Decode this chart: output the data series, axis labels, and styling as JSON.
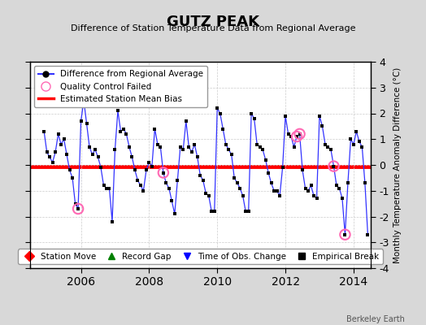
{
  "title": "GUTZ PEAK",
  "subtitle": "Difference of Station Temperature Data from Regional Average",
  "ylabel_right": "Monthly Temperature Anomaly Difference (°C)",
  "bias_value": -0.05,
  "ylim": [
    -4,
    4
  ],
  "xlim": [
    2004.5,
    2014.5
  ],
  "xticks": [
    2006,
    2008,
    2010,
    2012,
    2014
  ],
  "yticks": [
    -4,
    -3,
    -2,
    -1,
    0,
    1,
    2,
    3,
    4
  ],
  "background_color": "#d8d8d8",
  "plot_bg_color": "#ffffff",
  "line_color": "#3333ff",
  "bias_color": "#ff0000",
  "marker_color": "#000000",
  "qc_color": "#ff69b4",
  "watermark": "Berkeley Earth",
  "monthly_data": [
    [
      2004.917,
      1.3
    ],
    [
      2005.0,
      0.5
    ],
    [
      2005.083,
      0.3
    ],
    [
      2005.167,
      0.1
    ],
    [
      2005.25,
      0.5
    ],
    [
      2005.333,
      1.2
    ],
    [
      2005.417,
      0.8
    ],
    [
      2005.5,
      1.0
    ],
    [
      2005.583,
      0.4
    ],
    [
      2005.667,
      -0.2
    ],
    [
      2005.75,
      -0.5
    ],
    [
      2005.833,
      -1.5
    ],
    [
      2005.917,
      -1.7
    ],
    [
      2006.0,
      1.7
    ],
    [
      2006.083,
      2.5
    ],
    [
      2006.167,
      1.6
    ],
    [
      2006.25,
      0.7
    ],
    [
      2006.333,
      0.4
    ],
    [
      2006.417,
      0.6
    ],
    [
      2006.5,
      0.3
    ],
    [
      2006.583,
      -0.1
    ],
    [
      2006.667,
      -0.8
    ],
    [
      2006.75,
      -0.9
    ],
    [
      2006.833,
      -0.9
    ],
    [
      2006.917,
      -2.2
    ],
    [
      2007.0,
      0.6
    ],
    [
      2007.083,
      2.1
    ],
    [
      2007.167,
      1.3
    ],
    [
      2007.25,
      1.4
    ],
    [
      2007.333,
      1.2
    ],
    [
      2007.417,
      0.7
    ],
    [
      2007.5,
      0.3
    ],
    [
      2007.583,
      -0.2
    ],
    [
      2007.667,
      -0.6
    ],
    [
      2007.75,
      -0.8
    ],
    [
      2007.833,
      -1.0
    ],
    [
      2007.917,
      -0.2
    ],
    [
      2008.0,
      0.1
    ],
    [
      2008.083,
      -0.05
    ],
    [
      2008.167,
      1.4
    ],
    [
      2008.25,
      0.8
    ],
    [
      2008.333,
      0.7
    ],
    [
      2008.417,
      -0.3
    ],
    [
      2008.5,
      -0.7
    ],
    [
      2008.583,
      -0.9
    ],
    [
      2008.667,
      -1.4
    ],
    [
      2008.75,
      -1.9
    ],
    [
      2008.833,
      -0.6
    ],
    [
      2008.917,
      0.7
    ],
    [
      2009.0,
      0.6
    ],
    [
      2009.083,
      1.7
    ],
    [
      2009.167,
      0.7
    ],
    [
      2009.25,
      0.5
    ],
    [
      2009.333,
      0.8
    ],
    [
      2009.417,
      0.3
    ],
    [
      2009.5,
      -0.4
    ],
    [
      2009.583,
      -0.6
    ],
    [
      2009.667,
      -1.1
    ],
    [
      2009.75,
      -1.2
    ],
    [
      2009.833,
      -1.8
    ],
    [
      2009.917,
      -1.8
    ],
    [
      2010.0,
      2.2
    ],
    [
      2010.083,
      2.0
    ],
    [
      2010.167,
      1.4
    ],
    [
      2010.25,
      0.8
    ],
    [
      2010.333,
      0.6
    ],
    [
      2010.417,
      0.4
    ],
    [
      2010.5,
      -0.5
    ],
    [
      2010.583,
      -0.7
    ],
    [
      2010.667,
      -0.9
    ],
    [
      2010.75,
      -1.2
    ],
    [
      2010.833,
      -1.8
    ],
    [
      2010.917,
      -1.8
    ],
    [
      2011.0,
      2.0
    ],
    [
      2011.083,
      1.8
    ],
    [
      2011.167,
      0.8
    ],
    [
      2011.25,
      0.7
    ],
    [
      2011.333,
      0.6
    ],
    [
      2011.417,
      0.2
    ],
    [
      2011.5,
      -0.3
    ],
    [
      2011.583,
      -0.7
    ],
    [
      2011.667,
      -1.0
    ],
    [
      2011.75,
      -1.0
    ],
    [
      2011.833,
      -1.2
    ],
    [
      2011.917,
      -0.1
    ],
    [
      2012.0,
      1.9
    ],
    [
      2012.083,
      1.2
    ],
    [
      2012.167,
      1.1
    ],
    [
      2012.25,
      0.7
    ],
    [
      2012.333,
      1.1
    ],
    [
      2012.417,
      1.2
    ],
    [
      2012.5,
      -0.2
    ],
    [
      2012.583,
      -0.9
    ],
    [
      2012.667,
      -1.0
    ],
    [
      2012.75,
      -0.8
    ],
    [
      2012.833,
      -1.2
    ],
    [
      2012.917,
      -1.3
    ],
    [
      2013.0,
      1.9
    ],
    [
      2013.083,
      1.5
    ],
    [
      2013.167,
      0.8
    ],
    [
      2013.25,
      0.7
    ],
    [
      2013.333,
      0.6
    ],
    [
      2013.417,
      -0.05
    ],
    [
      2013.5,
      -0.8
    ],
    [
      2013.583,
      -0.9
    ],
    [
      2013.667,
      -1.3
    ],
    [
      2013.75,
      -2.7
    ],
    [
      2013.833,
      -0.7
    ],
    [
      2013.917,
      1.0
    ],
    [
      2014.0,
      0.8
    ],
    [
      2014.083,
      1.3
    ],
    [
      2014.167,
      0.9
    ],
    [
      2014.25,
      0.7
    ],
    [
      2014.333,
      -0.7
    ],
    [
      2014.417,
      -2.7
    ]
  ],
  "qc_failed_points": [
    [
      2005.917,
      -1.7
    ],
    [
      2006.083,
      2.5
    ],
    [
      2008.417,
      -0.3
    ],
    [
      2012.333,
      1.1
    ],
    [
      2012.417,
      1.2
    ],
    [
      2013.417,
      -0.05
    ],
    [
      2013.75,
      -2.7
    ]
  ],
  "legend1_items": [
    {
      "label": "Difference from Regional Average",
      "color": "#3333ff",
      "type": "line_marker"
    },
    {
      "label": "Quality Control Failed",
      "color": "#ff69b4",
      "type": "circle_open"
    },
    {
      "label": "Estimated Station Mean Bias",
      "color": "#ff0000",
      "type": "line"
    }
  ],
  "legend2_items": [
    {
      "label": "Station Move",
      "color": "#ff0000",
      "marker": "D"
    },
    {
      "label": "Record Gap",
      "color": "#008000",
      "marker": "^"
    },
    {
      "label": "Time of Obs. Change",
      "color": "#0000ff",
      "marker": "v"
    },
    {
      "label": "Empirical Break",
      "color": "#000000",
      "marker": "s"
    }
  ]
}
